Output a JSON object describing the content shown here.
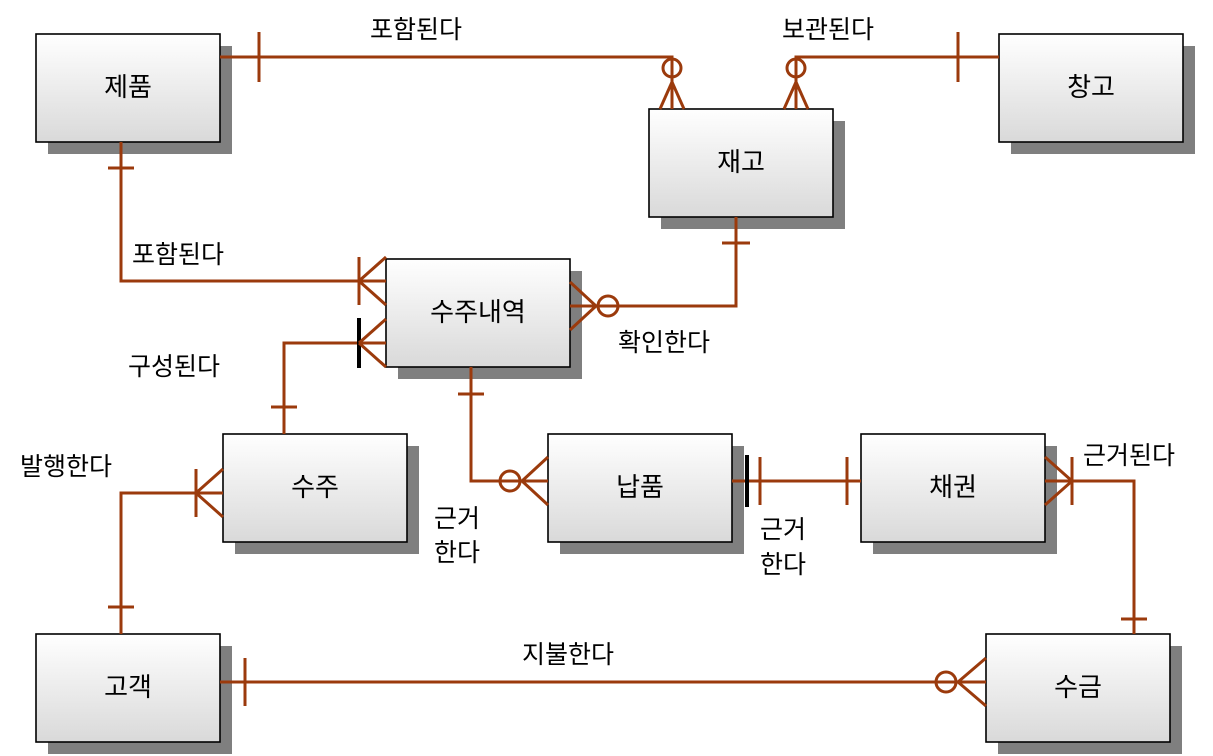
{
  "colors": {
    "line": "#9b3a0c",
    "box_top": "#ffffff",
    "box_bottom": "#d9d9d9",
    "shadow": "#7f7f7f"
  },
  "entities": {
    "product": "제품",
    "warehouse": "창고",
    "inventory": "재고",
    "order_detail": "수주내역",
    "order": "수주",
    "delivery": "납품",
    "receivable": "채권",
    "customer": "고객",
    "collection": "수금"
  },
  "relationships": {
    "product_inventory": "포함된다",
    "warehouse_inventory": "보관된다",
    "product_order_detail": "포함된다",
    "order_order_detail": "구성된다",
    "inventory_order_detail": "확인한다",
    "customer_order": "발행한다",
    "delivery_order_detail": [
      "근거",
      "한다"
    ],
    "receivable_delivery": [
      "근거",
      "한다"
    ],
    "collection_receivable": "근거된다",
    "customer_collection": "지불한다"
  }
}
